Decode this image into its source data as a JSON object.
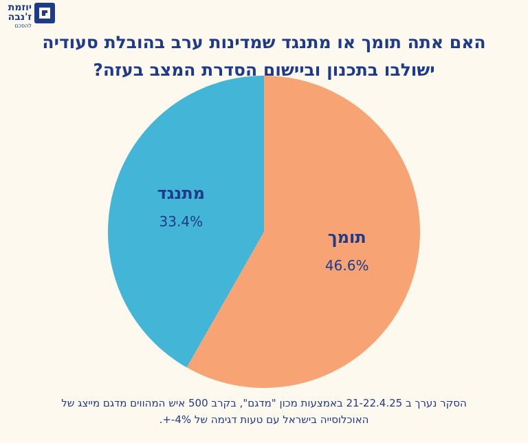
{
  "logo": {
    "name_line1": "יוזמת",
    "name_line2": "ז'נבה",
    "subtitle": "להסכם",
    "icon": "geneva-initiative-logo-icon"
  },
  "title": {
    "line1": "האם אתה תומך או מתנגד שמדינות ערב בהובלת סעודיה",
    "line2": "ישולבו בתכנון וביישום הסדרת המצב בעזה?"
  },
  "footnote": {
    "line1": "הסקר נערך ב 21-22.4.25 באמצעות מכון \"מדגם\", בקרב 500 איש המהווים מדגם מייצג של",
    "line2": "האוכלוסייה בישראל עם טעות דגימה של 4%-+."
  },
  "colors": {
    "support": "#f7a374",
    "oppose": "#43b5d6",
    "text": "#1e3a8a",
    "background": "#fdf9ef"
  },
  "chart_data": {
    "type": "pie",
    "start": "12 o'clock, clockwise",
    "slices": [
      {
        "label": "תומך",
        "value": 46.6,
        "value_label": "46.6%",
        "color": "#f7a374"
      },
      {
        "label": "מתנגד",
        "value": 33.4,
        "value_label": "33.4%",
        "color": "#43b5d6"
      }
    ]
  }
}
